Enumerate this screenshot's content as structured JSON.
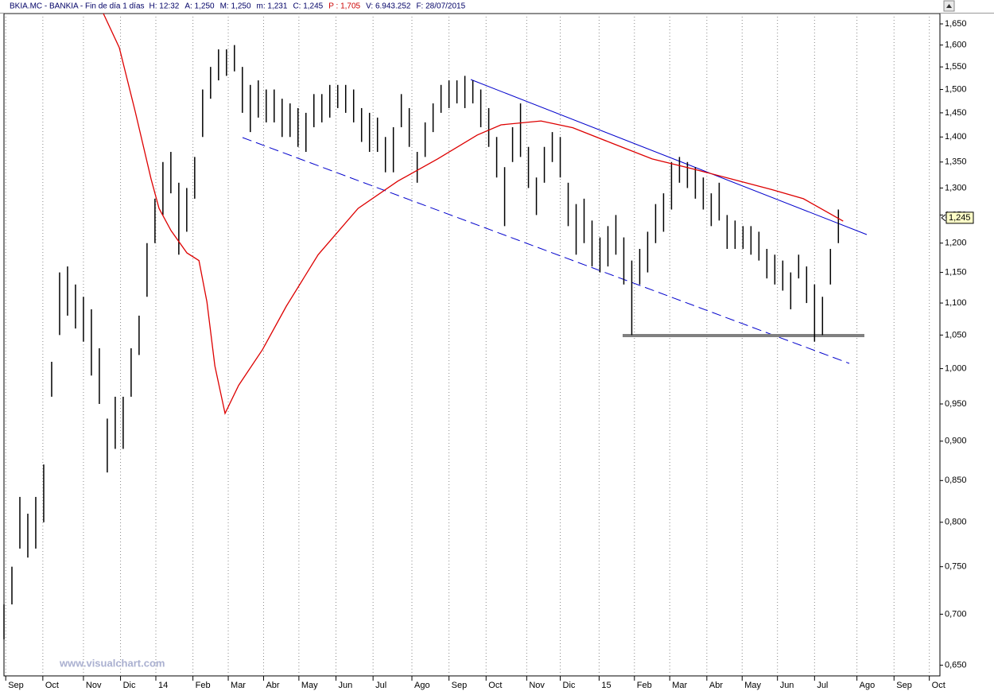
{
  "chart_data": {
    "type": "ohlc",
    "header": [
      {
        "text": "BKIA.MC - BANKIA - Fin de día 1 días",
        "color": "#000066"
      },
      {
        "text": "H: 12:32",
        "color": "#000066"
      },
      {
        "text": "A: 1,250",
        "color": "#000066"
      },
      {
        "text": "M: 1,250",
        "color": "#000066"
      },
      {
        "text": "m: 1,231",
        "color": "#000066"
      },
      {
        "text": "C: 1,245",
        "color": "#000066"
      },
      {
        "text": "P : 1,705",
        "color": "#cc0000"
      },
      {
        "text": "V: 6.943.252",
        "color": "#000066"
      },
      {
        "text": "F: 28/07/2015",
        "color": "#000066"
      }
    ],
    "watermark": "www.visualchart.com",
    "log_scale": true,
    "grid": true,
    "color": "#000000",
    "xlim": [
      0,
      530
    ],
    "ylim": [
      0.64,
      1.675
    ],
    "yticks": [
      {
        "value": 0.65,
        "label": "0,650"
      },
      {
        "value": 0.7,
        "label": "0,700"
      },
      {
        "value": 0.75,
        "label": "0,750"
      },
      {
        "value": 0.8,
        "label": "0,800"
      },
      {
        "value": 0.85,
        "label": "0,850"
      },
      {
        "value": 0.9,
        "label": "0,900"
      },
      {
        "value": 0.95,
        "label": "0,950"
      },
      {
        "value": 1.0,
        "label": "1,000"
      },
      {
        "value": 1.05,
        "label": "1,050"
      },
      {
        "value": 1.1,
        "label": "1,100"
      },
      {
        "value": 1.15,
        "label": "1,150"
      },
      {
        "value": 1.2,
        "label": "1,200"
      },
      {
        "value": 1.25,
        "label": "1,250"
      },
      {
        "value": 1.3,
        "label": "1,300"
      },
      {
        "value": 1.35,
        "label": "1,350"
      },
      {
        "value": 1.4,
        "label": "1,400"
      },
      {
        "value": 1.45,
        "label": "1,450"
      },
      {
        "value": 1.5,
        "label": "1,500"
      },
      {
        "value": 1.55,
        "label": "1,550"
      },
      {
        "value": 1.6,
        "label": "1,600"
      },
      {
        "value": 1.65,
        "label": "1,650"
      }
    ],
    "xticks": [
      {
        "value": 1,
        "label": "Sep"
      },
      {
        "value": 22,
        "label": "Oct"
      },
      {
        "value": 45,
        "label": "Nov"
      },
      {
        "value": 66,
        "label": "Dic"
      },
      {
        "value": 86,
        "label": "14"
      },
      {
        "value": 107,
        "label": "Feb"
      },
      {
        "value": 127,
        "label": "Mar"
      },
      {
        "value": 147,
        "label": "Abr"
      },
      {
        "value": 167,
        "label": "May"
      },
      {
        "value": 188,
        "label": "Jun"
      },
      {
        "value": 209,
        "label": "Jul"
      },
      {
        "value": 231,
        "label": "Ago"
      },
      {
        "value": 252,
        "label": "Sep"
      },
      {
        "value": 273,
        "label": "Oct"
      },
      {
        "value": 296,
        "label": "Nov"
      },
      {
        "value": 315,
        "label": "Dic"
      },
      {
        "value": 337,
        "label": "15"
      },
      {
        "value": 357,
        "label": "Feb"
      },
      {
        "value": 377,
        "label": "Mar"
      },
      {
        "value": 398,
        "label": "Abr"
      },
      {
        "value": 418,
        "label": "May"
      },
      {
        "value": 438,
        "label": "Jun"
      },
      {
        "value": 459,
        "label": "Jul"
      },
      {
        "value": 483,
        "label": "Ago"
      },
      {
        "value": 504,
        "label": "Sep"
      },
      {
        "value": 524,
        "label": "Oct"
      }
    ],
    "x": [
      0,
      4.5,
      9,
      13.5,
      18,
      22.5,
      27,
      31.5,
      36,
      40.5,
      45,
      49.5,
      54,
      58.5,
      63,
      67.5,
      72,
      76.5,
      81,
      85.5,
      90,
      94.5,
      99,
      103.5,
      108,
      112.5,
      117,
      121.5,
      126,
      130.5,
      135,
      139.5,
      144,
      148.5,
      153,
      157.5,
      162,
      166.5,
      171,
      175.5,
      180,
      184.5,
      189,
      193.5,
      198,
      202.5,
      207,
      211.5,
      216,
      220.5,
      225,
      229.5,
      234,
      238.5,
      243,
      247.5,
      252,
      256.5,
      261,
      265.5,
      270,
      274.5,
      279,
      283.5,
      288,
      292.5,
      297,
      301.5,
      306,
      310.5,
      315,
      319.5,
      324,
      328.5,
      333,
      337.5,
      342,
      346.5,
      351,
      355.5,
      360,
      364.5,
      369,
      373.5,
      378,
      382.5,
      387,
      391.5,
      396,
      400.5,
      405,
      409.5,
      414,
      418.5,
      423,
      427.5,
      432,
      436.5,
      441,
      445.5,
      450,
      454.5,
      459,
      463.5,
      468,
      472.5
    ],
    "high": [
      0.71,
      0.75,
      0.83,
      0.81,
      0.83,
      0.87,
      1.01,
      1.15,
      1.16,
      1.13,
      1.11,
      1.09,
      1.03,
      0.93,
      0.96,
      0.96,
      1.03,
      1.08,
      1.2,
      1.28,
      1.35,
      1.37,
      1.31,
      1.3,
      1.36,
      1.5,
      1.55,
      1.59,
      1.59,
      1.6,
      1.55,
      1.51,
      1.52,
      1.5,
      1.5,
      1.48,
      1.47,
      1.46,
      1.45,
      1.49,
      1.49,
      1.51,
      1.51,
      1.51,
      1.5,
      1.46,
      1.45,
      1.44,
      1.4,
      1.42,
      1.49,
      1.46,
      1.37,
      1.43,
      1.47,
      1.51,
      1.52,
      1.52,
      1.53,
      1.52,
      1.5,
      1.46,
      1.4,
      1.34,
      1.42,
      1.47,
      1.38,
      1.32,
      1.38,
      1.41,
      1.4,
      1.31,
      1.27,
      1.28,
      1.24,
      1.21,
      1.23,
      1.25,
      1.21,
      1.17,
      1.19,
      1.22,
      1.27,
      1.29,
      1.35,
      1.36,
      1.35,
      1.34,
      1.32,
      1.29,
      1.31,
      1.25,
      1.24,
      1.23,
      1.23,
      1.22,
      1.19,
      1.18,
      1.17,
      1.15,
      1.18,
      1.16,
      1.13,
      1.11,
      1.19,
      1.26
    ],
    "low": [
      0.675,
      0.71,
      0.77,
      0.76,
      0.77,
      0.8,
      0.96,
      1.05,
      1.08,
      1.06,
      1.04,
      0.99,
      0.95,
      0.86,
      0.89,
      0.89,
      0.96,
      1.02,
      1.11,
      1.2,
      1.25,
      1.29,
      1.18,
      1.22,
      1.28,
      1.4,
      1.48,
      1.52,
      1.53,
      1.54,
      1.45,
      1.41,
      1.44,
      1.43,
      1.43,
      1.4,
      1.4,
      1.38,
      1.37,
      1.42,
      1.43,
      1.44,
      1.46,
      1.45,
      1.43,
      1.39,
      1.37,
      1.37,
      1.33,
      1.33,
      1.42,
      1.38,
      1.31,
      1.36,
      1.41,
      1.45,
      1.46,
      1.47,
      1.46,
      1.47,
      1.42,
      1.38,
      1.32,
      1.23,
      1.35,
      1.36,
      1.3,
      1.25,
      1.31,
      1.35,
      1.32,
      1.23,
      1.18,
      1.2,
      1.16,
      1.15,
      1.16,
      1.18,
      1.13,
      1.05,
      1.13,
      1.15,
      1.2,
      1.22,
      1.26,
      1.31,
      1.3,
      1.28,
      1.26,
      1.23,
      1.24,
      1.19,
      1.19,
      1.19,
      1.18,
      1.17,
      1.14,
      1.13,
      1.12,
      1.09,
      1.14,
      1.1,
      1.04,
      1.05,
      1.13,
      1.2
    ],
    "moving_average": {
      "color": "#dd0000",
      "x": [
        56.3,
        65.3,
        74.3,
        83.3,
        87.8,
        94.6,
        103.6,
        110.4,
        114.9,
        119.4,
        125.2,
        132.9,
        146.4,
        159.9,
        177.9,
        200.5,
        223,
        245.5,
        268,
        281.5,
        304.1,
        322.1,
        344.6,
        367.1,
        389.6,
        412.2,
        434.7,
        452.7,
        475.2
      ],
      "values": [
        1.675,
        1.594,
        1.453,
        1.317,
        1.262,
        1.222,
        1.183,
        1.17,
        1.102,
        1.004,
        0.937,
        0.976,
        1.028,
        1.095,
        1.18,
        1.262,
        1.313,
        1.356,
        1.404,
        1.425,
        1.433,
        1.419,
        1.387,
        1.356,
        1.337,
        1.317,
        1.297,
        1.28,
        1.239
      ]
    },
    "last_price": {
      "value": 1.245,
      "label": "1,245"
    }
  }
}
